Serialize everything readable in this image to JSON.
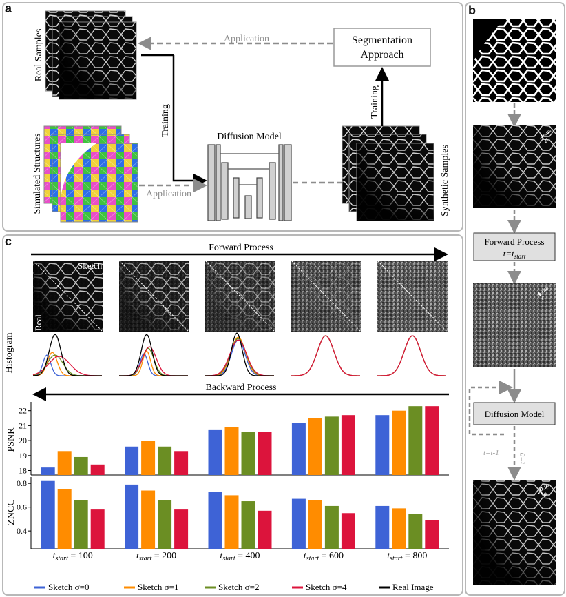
{
  "panel_labels": {
    "a": "a",
    "b": "b",
    "c": "c"
  },
  "panel_a": {
    "real_samples": "Real Samples",
    "simulated_structures": "Simulated Structures",
    "synthetic_samples": "Synthetic Samples",
    "application_top": "Application",
    "application_bottom": "Application",
    "training_left": "Training",
    "training_right": "Training",
    "diffusion_model": "Diffusion Model",
    "segmentation_line1": "Segmentation",
    "segmentation_line2": "Approach"
  },
  "panel_b": {
    "forward_process": "Forward Process",
    "t_start_eq": "t=t",
    "t_start_sub": "start",
    "diffusion_model": "Diffusion Model",
    "t_minus": "t=t-1",
    "t_zero": "t=0",
    "x0_label": "x",
    "xt_label": "x",
    "xhat_label": "x̂"
  },
  "panel_c": {
    "forward_process": "Forward Process",
    "backward_process": "Backward Process",
    "sketch_label": "Sketch",
    "real_label": "Real",
    "histogram_label": "Histogram",
    "psnr_label": "PSNR",
    "zncc_label": "ZNCC",
    "colors": {
      "s0": "#3e63d6",
      "s1": "#ff8c00",
      "s2": "#6b8e23",
      "s4": "#dc143c",
      "real": "#000000"
    }
  },
  "chart_data": [
    {
      "type": "bar",
      "title": "",
      "ylabel": "PSNR",
      "ylim": [
        17.7,
        22.4
      ],
      "ticks": [
        18,
        19,
        20,
        21,
        22
      ],
      "categories": [
        "t_start = 100",
        "t_start = 200",
        "t_start = 400",
        "t_start = 600",
        "t_start = 800"
      ],
      "series": [
        {
          "name": "Sketch σ=0",
          "values": [
            18.2,
            19.6,
            20.7,
            21.2,
            21.7
          ]
        },
        {
          "name": "Sketch σ=1",
          "values": [
            19.3,
            20.0,
            20.9,
            21.5,
            22.0
          ]
        },
        {
          "name": "Sketch σ=2",
          "values": [
            18.9,
            19.6,
            20.6,
            21.6,
            22.3
          ]
        },
        {
          "name": "Sketch σ=4",
          "values": [
            18.4,
            19.3,
            20.6,
            21.7,
            22.3
          ]
        }
      ]
    },
    {
      "type": "bar",
      "title": "",
      "ylabel": "ZNCC",
      "ylim": [
        0.25,
        0.83
      ],
      "ticks": [
        0.4,
        0.6,
        0.8
      ],
      "categories": [
        "t_start = 100",
        "t_start = 200",
        "t_start = 400",
        "t_start = 600",
        "t_start = 800"
      ],
      "series": [
        {
          "name": "Sketch σ=0",
          "values": [
            0.82,
            0.79,
            0.73,
            0.67,
            0.61
          ]
        },
        {
          "name": "Sketch σ=1",
          "values": [
            0.75,
            0.74,
            0.7,
            0.66,
            0.59
          ]
        },
        {
          "name": "Sketch σ=2",
          "values": [
            0.66,
            0.66,
            0.65,
            0.61,
            0.54
          ]
        },
        {
          "name": "Sketch σ=4",
          "values": [
            0.58,
            0.58,
            0.57,
            0.55,
            0.49
          ]
        }
      ]
    }
  ],
  "x_tick_labels": [
    {
      "t": "t",
      "sub": "start",
      "val": " = 100"
    },
    {
      "t": "t",
      "sub": "start",
      "val": " = 200"
    },
    {
      "t": "t",
      "sub": "start",
      "val": " = 400"
    },
    {
      "t": "t",
      "sub": "start",
      "val": " = 600"
    },
    {
      "t": "t",
      "sub": "start",
      "val": " = 800"
    }
  ],
  "legend": [
    {
      "name": "Sketch σ=0",
      "color": "#3e63d6"
    },
    {
      "name": "Sketch σ=1",
      "color": "#ff8c00"
    },
    {
      "name": "Sketch σ=2",
      "color": "#6b8e23"
    },
    {
      "name": "Sketch σ=4",
      "color": "#dc143c"
    },
    {
      "name": "Real Image",
      "color": "#000000"
    }
  ]
}
